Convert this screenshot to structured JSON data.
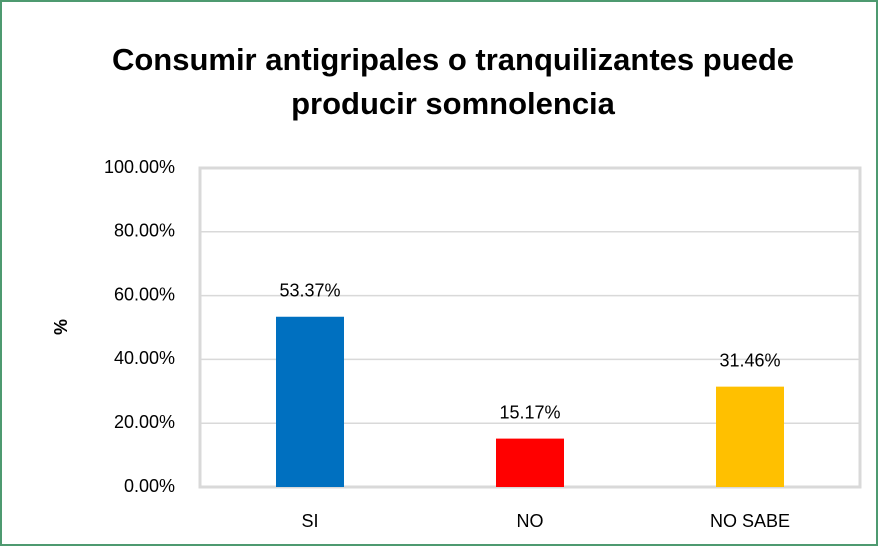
{
  "chart_data": {
    "type": "bar",
    "title": "Consumir antigripales o tranquilizantes puede producir somnolencia",
    "y_label": "%",
    "categories": [
      "SI",
      "NO",
      "NO SABE"
    ],
    "values": [
      53.37,
      15.17,
      31.46
    ],
    "value_labels": [
      "53.37%",
      "15.17%",
      "31.46%"
    ],
    "colors": [
      "#0070c0",
      "#ff0000",
      "#ffc000"
    ],
    "ylim": [
      0,
      100
    ],
    "yticks": [
      {
        "value": 0,
        "label": "0.00%"
      },
      {
        "value": 20,
        "label": "20.00%"
      },
      {
        "value": 40,
        "label": "40.00%"
      },
      {
        "value": 60,
        "label": "60.00%"
      },
      {
        "value": 80,
        "label": "80.00%"
      },
      {
        "value": 100,
        "label": "100.00%"
      }
    ],
    "grid": true
  }
}
